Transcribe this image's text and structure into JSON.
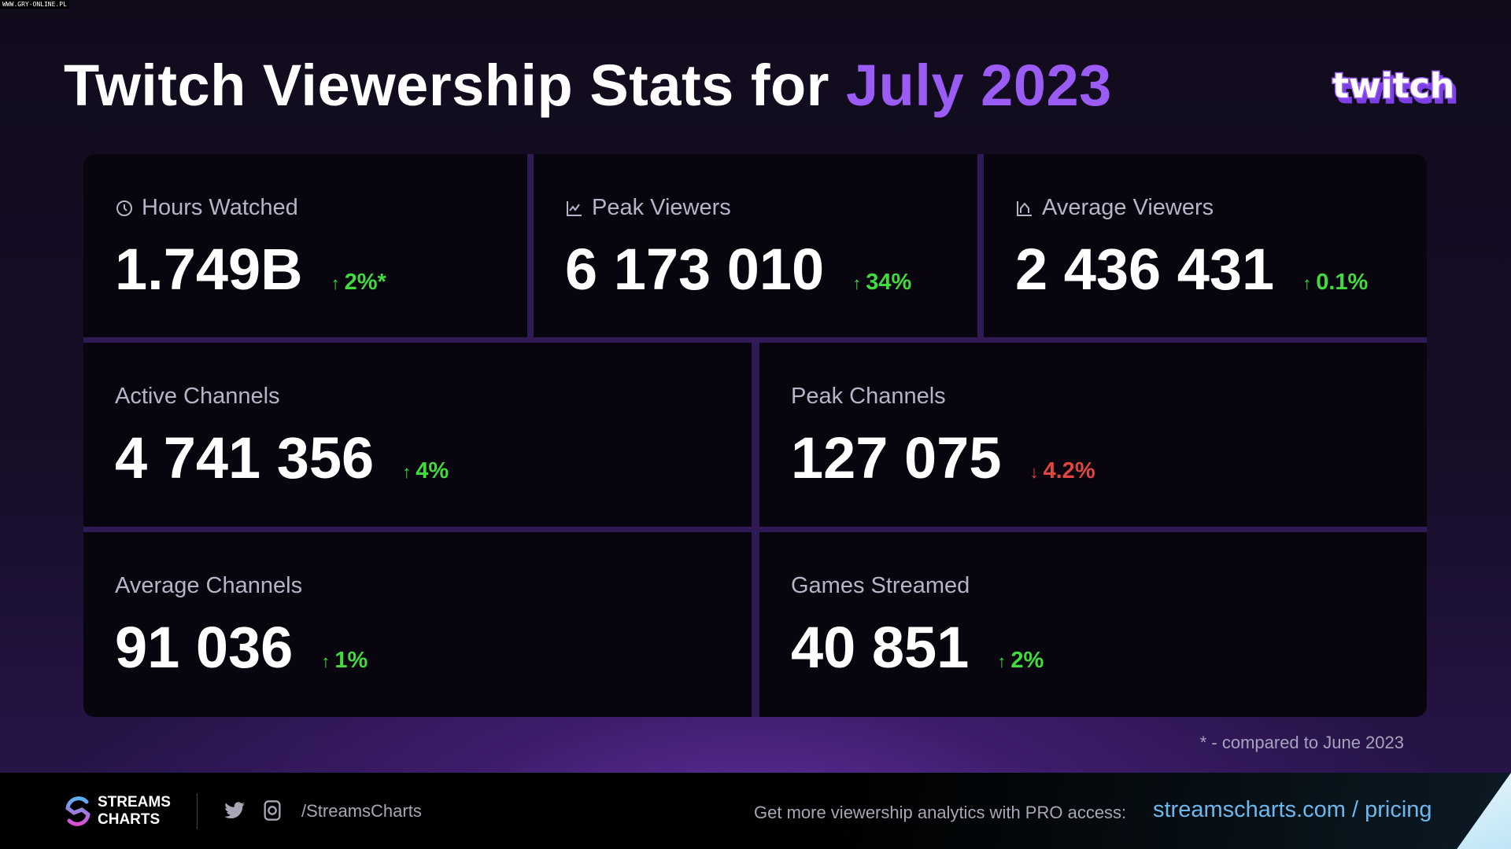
{
  "watermark": "WWW.GRY-ONLINE.PL",
  "title": {
    "main": "Twitch Viewership Stats for ",
    "accent": "July 2023"
  },
  "logo": {
    "text": "twitch"
  },
  "stats": [
    {
      "label": "Hours Watched",
      "icon": "clock-icon",
      "value": "1.749B",
      "change": "2%*",
      "direction": "up"
    },
    {
      "label": "Peak Viewers",
      "icon": "chart-icon",
      "value": "6 173 010",
      "change": "34%",
      "direction": "up"
    },
    {
      "label": "Average Viewers",
      "icon": "average-chart-icon",
      "value": "2 436 431",
      "change": "0.1%",
      "direction": "up"
    },
    {
      "label": "Active Channels",
      "value": "4 741 356",
      "change": "4%",
      "direction": "up"
    },
    {
      "label": "Peak Channels",
      "value": "127 075",
      "change": "4.2%",
      "direction": "down"
    },
    {
      "label": "Average Channels",
      "value": "91 036",
      "change": "1%",
      "direction": "up"
    },
    {
      "label": "Games Streamed",
      "value": "40 851",
      "change": "2%",
      "direction": "up"
    }
  ],
  "arrows": {
    "up": "↑",
    "down": "↓"
  },
  "footnote": "* - compared to June 2023",
  "footer": {
    "brand_line1": "STREAMS",
    "brand_line2": "CHARTS",
    "handle": "/StreamsCharts",
    "promo": "Get more viewership analytics with PRO access:",
    "link": "streamscharts.com / pricing"
  },
  "colors": {
    "accent": "#9b5cf6",
    "up": "#3fdc3b",
    "down": "#e2453f",
    "link": "#6cb8ee"
  }
}
